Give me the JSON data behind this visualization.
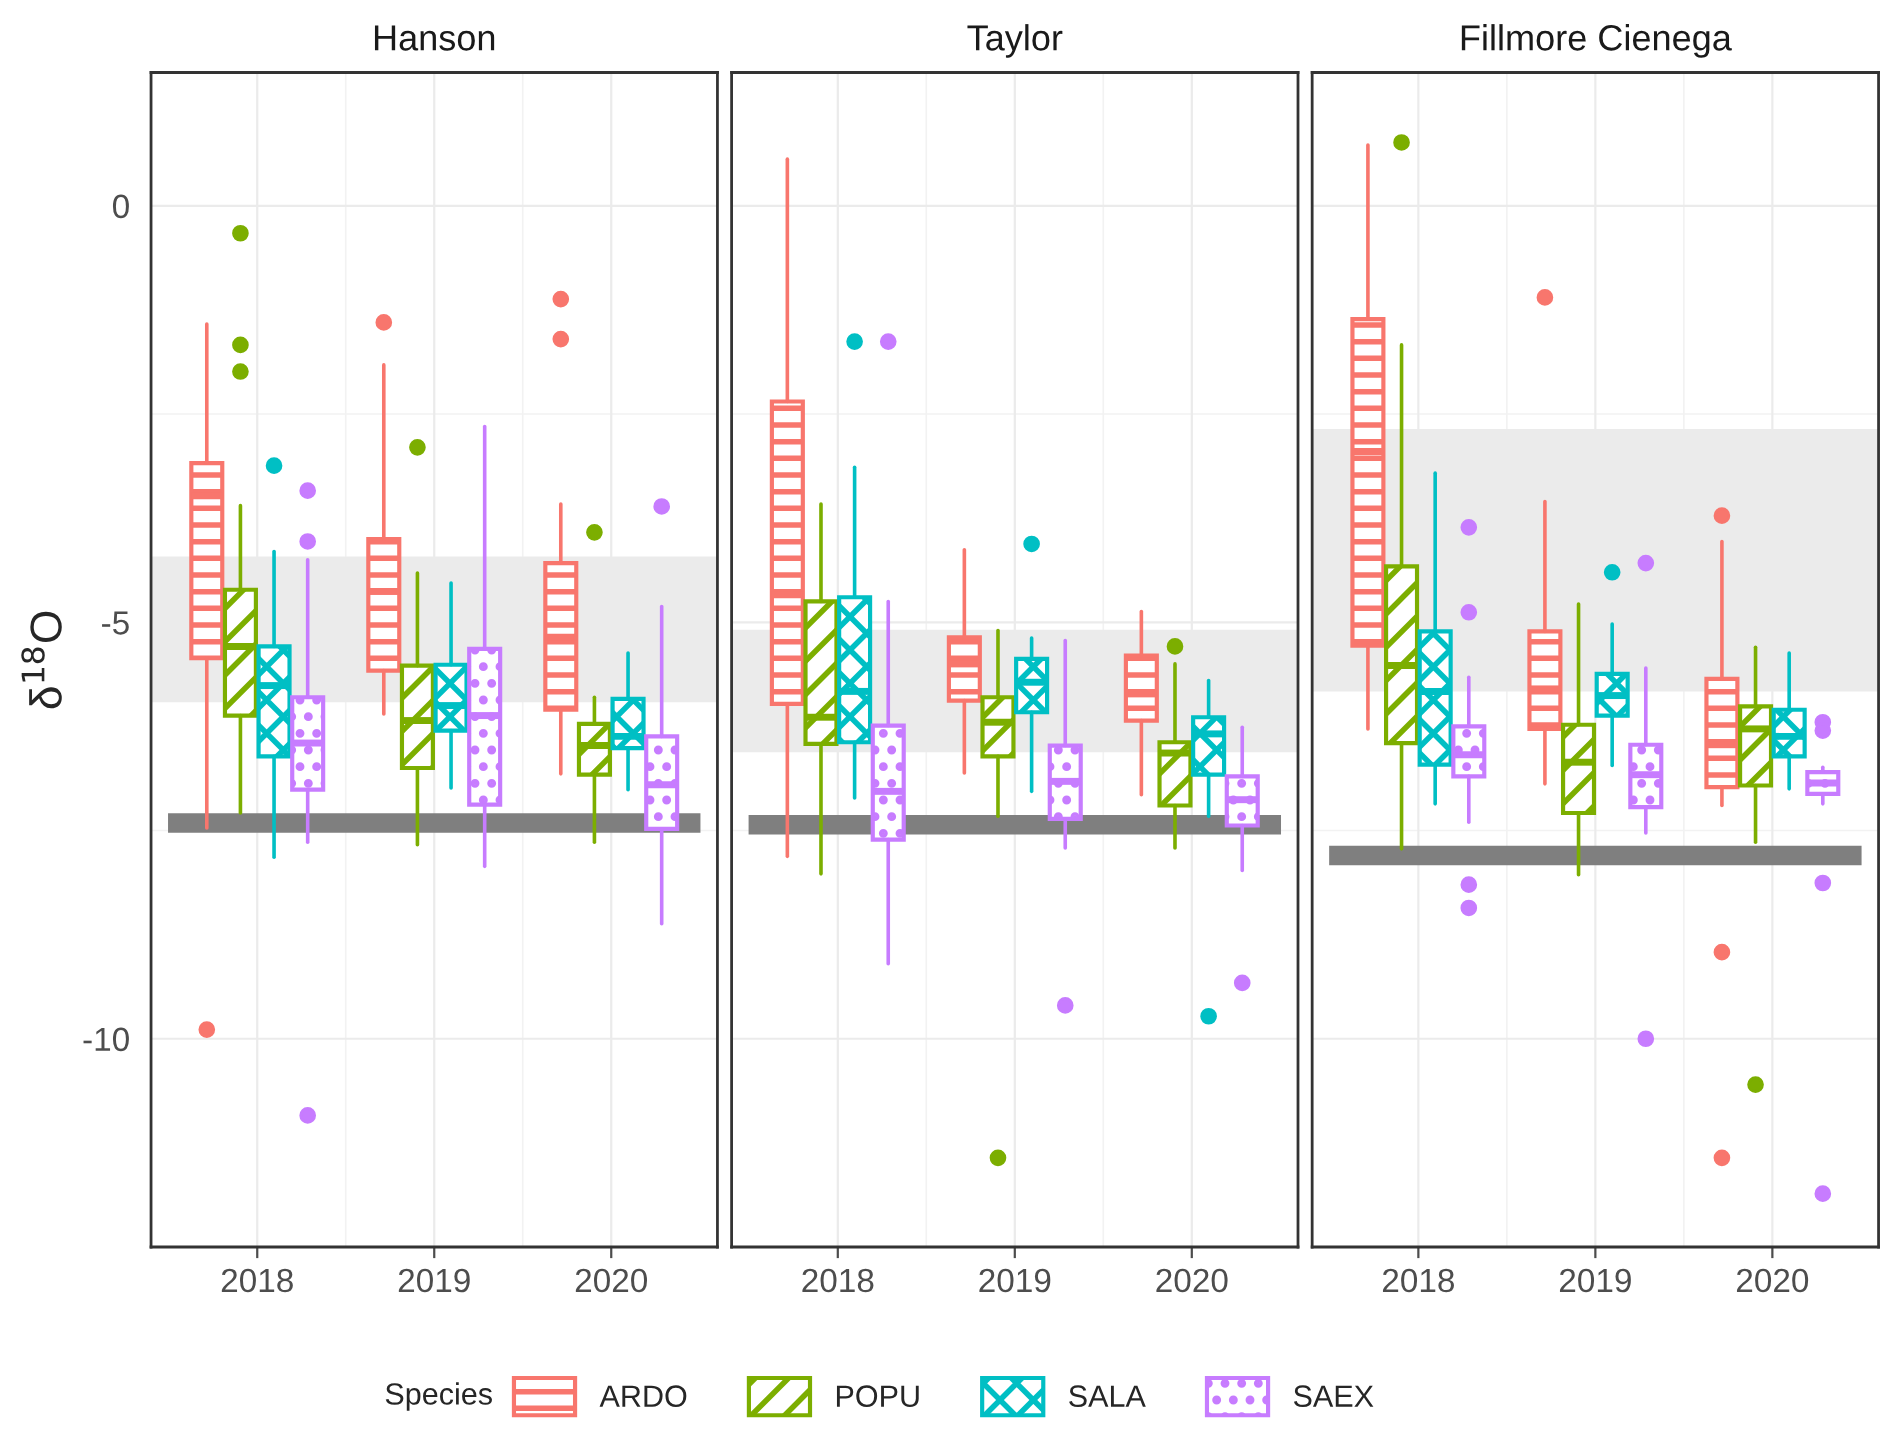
{
  "chart_data": [
    {
      "type": "box",
      "title": "Hanson",
      "ylabel": "δ$^{18}$O",
      "legend": "bottom",
      "legend_title": "Species",
      "categories": [
        "2018",
        "2019",
        "2020"
      ],
      "ylim": [
        -12.5,
        1.6
      ],
      "yticks": [
        0,
        -5,
        -10
      ],
      "grid": true,
      "bands": [
        {
          "axis": "y",
          "from": -5.96,
          "to": -4.21,
          "color": "#ebebeb"
        }
      ],
      "ref_lines": [
        {
          "axis": "y",
          "value": -7.41,
          "color": "#7f7f7f"
        }
      ],
      "series": [
        {
          "name": "ARDO",
          "color": "#f8766d",
          "boxes": [
            {
              "low": -7.47,
              "q1": -5.43,
              "median": -3.48,
              "q3": -3.09,
              "high": -1.42,
              "outliers": [
                -9.89
              ]
            },
            {
              "low": -6.1,
              "q1": -5.58,
              "median": -4.63,
              "q3": -4.0,
              "high": -1.91,
              "outliers": [
                -1.4
              ]
            },
            {
              "low": -6.82,
              "q1": -6.05,
              "median": -5.18,
              "q3": -4.29,
              "high": -3.58,
              "outliers": [
                -1.12,
                -1.6
              ]
            }
          ]
        },
        {
          "name": "POPU",
          "color": "#7cae00",
          "boxes": [
            {
              "low": -7.29,
              "q1": -6.12,
              "median": -5.29,
              "q3": -4.61,
              "high": -3.6,
              "outliers": [
                -0.33,
                -1.67,
                -1.99
              ]
            },
            {
              "low": -7.67,
              "q1": -6.75,
              "median": -6.18,
              "q3": -5.52,
              "high": -4.41,
              "outliers": [
                -2.9
              ]
            },
            {
              "low": -7.64,
              "q1": -6.83,
              "median": -6.48,
              "q3": -6.22,
              "high": -5.9,
              "outliers": [
                -3.92
              ]
            }
          ]
        },
        {
          "name": "SALA",
          "color": "#00bfc4",
          "boxes": [
            {
              "low": -7.82,
              "q1": -6.61,
              "median": -5.76,
              "q3": -5.29,
              "high": -4.15,
              "outliers": [
                -3.12
              ]
            },
            {
              "low": -6.99,
              "q1": -6.3,
              "median": -6.0,
              "q3": -5.51,
              "high": -4.53
            },
            {
              "low": -7.01,
              "q1": -6.51,
              "median": -6.37,
              "q3": -5.92,
              "high": -5.37
            }
          ]
        },
        {
          "name": "SAEX",
          "color": "#c77cff",
          "boxes": [
            {
              "low": -7.64,
              "q1": -7.01,
              "median": -6.45,
              "q3": -5.9,
              "high": -4.25,
              "outliers": [
                -3.42,
                -4.03,
                -10.92
              ]
            },
            {
              "low": -7.93,
              "q1": -7.19,
              "median": -6.12,
              "q3": -5.32,
              "high": -2.65
            },
            {
              "low": -8.62,
              "q1": -7.48,
              "median": -6.95,
              "q3": -6.37,
              "high": -4.81,
              "outliers": [
                -3.61
              ]
            }
          ]
        }
      ]
    },
    {
      "type": "box",
      "title": "Taylor",
      "categories": [
        "2018",
        "2019",
        "2020"
      ],
      "ylim": [
        -12.5,
        1.6
      ],
      "yticks": [
        0,
        -5,
        -10
      ],
      "grid": true,
      "tick_labels": "x",
      "bands": [
        {
          "axis": "y",
          "from": -6.56,
          "to": -5.09,
          "color": "#ebebeb"
        }
      ],
      "ref_lines": [
        {
          "axis": "y",
          "value": -7.43,
          "color": "#7f7f7f"
        }
      ],
      "series": [
        {
          "color": "#f8766d",
          "boxes": [
            {
              "low": -7.81,
              "q1": -5.98,
              "median": -4.67,
              "q3": -2.35,
              "high": 0.56
            },
            {
              "low": -6.81,
              "q1": -5.94,
              "median": -5.5,
              "q3": -5.18,
              "high": -4.13
            },
            {
              "low": -7.07,
              "q1": -6.18,
              "median": -5.86,
              "q3": -5.4,
              "high": -4.87
            }
          ]
        },
        {
          "color": "#7cae00",
          "boxes": [
            {
              "low": -8.02,
              "q1": -6.46,
              "median": -6.14,
              "q3": -4.75,
              "high": -3.58
            },
            {
              "low": -7.33,
              "q1": -6.61,
              "median": -6.2,
              "q3": -5.9,
              "high": -5.1,
              "outliers": [
                -11.43
              ]
            },
            {
              "low": -7.71,
              "q1": -7.2,
              "median": -6.57,
              "q3": -6.44,
              "high": -5.5,
              "outliers": [
                -5.29
              ]
            }
          ]
        },
        {
          "color": "#00bfc4",
          "boxes": [
            {
              "low": -7.11,
              "q1": -6.44,
              "median": -5.83,
              "q3": -4.7,
              "high": -3.14,
              "outliers": [
                -1.63
              ]
            },
            {
              "low": -7.03,
              "q1": -6.08,
              "median": -5.72,
              "q3": -5.44,
              "high": -5.19,
              "outliers": [
                -4.06
              ]
            },
            {
              "low": -7.33,
              "q1": -6.83,
              "median": -6.34,
              "q3": -6.14,
              "high": -5.7,
              "outliers": [
                -9.73
              ]
            }
          ]
        },
        {
          "color": "#c77cff",
          "boxes": [
            {
              "low": -9.1,
              "q1": -7.61,
              "median": -7.03,
              "q3": -6.24,
              "high": -4.75,
              "outliers": [
                -1.63
              ]
            },
            {
              "low": -7.71,
              "q1": -7.36,
              "median": -6.91,
              "q3": -6.48,
              "high": -5.22,
              "outliers": [
                -9.6
              ]
            },
            {
              "low": -7.98,
              "q1": -7.44,
              "median": -7.13,
              "q3": -6.85,
              "high": -6.26,
              "outliers": [
                -9.33
              ]
            }
          ]
        }
      ]
    },
    {
      "type": "box",
      "title": "Fillmore Cienega",
      "categories": [
        "2018",
        "2019",
        "2020"
      ],
      "ylim": [
        -12.5,
        1.6
      ],
      "yticks": [
        0,
        -5,
        -10
      ],
      "grid": true,
      "tick_labels": "x",
      "bands": [
        {
          "axis": "y",
          "from": -5.83,
          "to": -2.68,
          "color": "#ebebeb"
        }
      ],
      "ref_lines": [
        {
          "axis": "y",
          "value": -7.8,
          "color": "#7f7f7f"
        }
      ],
      "series": [
        {
          "color": "#f8766d",
          "boxes": [
            {
              "low": -6.28,
              "q1": -5.28,
              "median": -2.95,
              "q3": -1.36,
              "high": 0.73
            },
            {
              "low": -6.94,
              "q1": -6.28,
              "median": -5.8,
              "q3": -5.11,
              "high": -3.55,
              "outliers": [
                -1.1
              ]
            },
            {
              "low": -7.2,
              "q1": -6.98,
              "median": -6.47,
              "q3": -5.68,
              "high": -4.03,
              "outliers": [
                -3.72,
                -8.96,
                -11.43
              ]
            }
          ]
        },
        {
          "color": "#7cae00",
          "boxes": [
            {
              "low": -7.72,
              "q1": -6.45,
              "median": -5.52,
              "q3": -4.33,
              "high": -1.67,
              "outliers": [
                0.76
              ]
            },
            {
              "low": -8.03,
              "q1": -7.29,
              "median": -6.68,
              "q3": -6.23,
              "high": -4.78
            },
            {
              "low": -7.64,
              "q1": -6.96,
              "median": -6.28,
              "q3": -6.01,
              "high": -5.3,
              "outliers": [
                -10.55
              ]
            }
          ]
        },
        {
          "color": "#00bfc4",
          "boxes": [
            {
              "low": -7.18,
              "q1": -6.71,
              "median": -5.83,
              "q3": -5.11,
              "high": -3.21
            },
            {
              "low": -6.72,
              "q1": -6.12,
              "median": -5.88,
              "q3": -5.62,
              "high": -5.02,
              "outliers": [
                -4.4
              ]
            },
            {
              "low": -7.0,
              "q1": -6.61,
              "median": -6.37,
              "q3": -6.05,
              "high": -5.37
            }
          ]
        },
        {
          "color": "#c77cff",
          "boxes": [
            {
              "low": -7.4,
              "q1": -6.85,
              "median": -6.59,
              "q3": -6.25,
              "high": -5.66,
              "outliers": [
                -3.86,
                -4.88,
                -8.15,
                -8.43
              ]
            },
            {
              "low": -7.53,
              "q1": -7.22,
              "median": -6.83,
              "q3": -6.47,
              "high": -5.55,
              "outliers": [
                -4.29,
                -10.0
              ]
            },
            {
              "low": -7.18,
              "q1": -7.06,
              "median": -6.93,
              "q3": -6.8,
              "high": -6.74,
              "outliers": [
                -6.2,
                -6.3,
                -8.13,
                -11.86
              ]
            }
          ]
        }
      ]
    }
  ]
}
